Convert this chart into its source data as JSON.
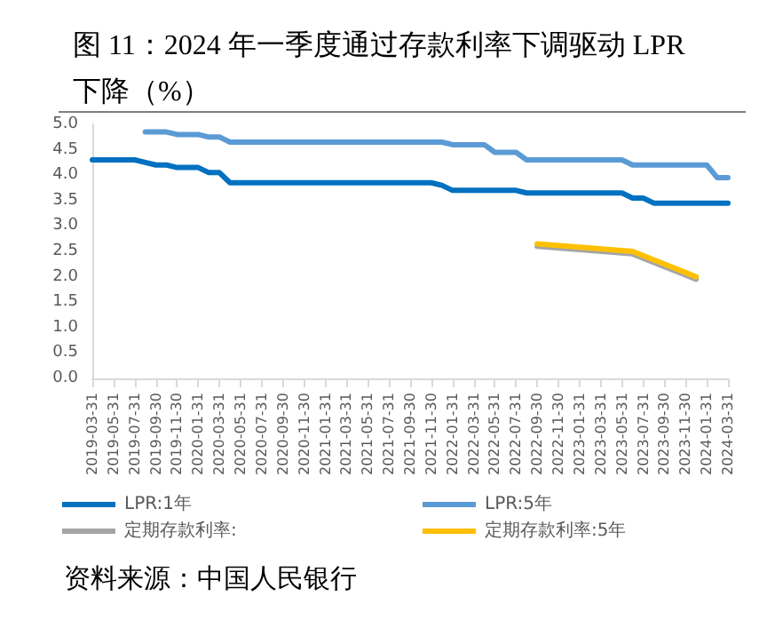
{
  "chart_data": {
    "type": "line",
    "title": "图 11：2024 年一季度通过存款利率下调驱动 LPR 下降（%）",
    "categories": [
      "2019-03-31",
      null,
      "2019-05-31",
      null,
      "2019-07-31",
      null,
      "2019-09-30",
      null,
      "2019-11-30",
      null,
      "2020-01-31",
      null,
      "2020-03-31",
      null,
      "2020-05-31",
      null,
      "2020-07-31",
      null,
      "2020-09-30",
      null,
      "2020-11-30",
      null,
      "2021-01-31",
      null,
      "2021-03-31",
      null,
      "2021-05-31",
      null,
      "2021-07-31",
      null,
      "2021-09-30",
      null,
      "2021-11-30",
      null,
      "2022-01-31",
      null,
      "2022-03-31",
      null,
      "2022-05-31",
      null,
      "2022-07-31",
      null,
      "2022-09-30",
      null,
      "2022-11-30",
      null,
      "2023-01-31",
      null,
      "2023-03-31",
      null,
      "2023-05-31",
      null,
      "2023-07-31",
      null,
      "2023-09-30",
      null,
      "2023-11-30",
      null,
      "2024-01-31",
      null,
      "2024-03-31"
    ],
    "series": [
      {
        "name": "LPR:1年",
        "color": "#0070c0",
        "values": [
          4.3,
          4.3,
          4.3,
          4.3,
          4.3,
          4.25,
          4.2,
          4.2,
          4.15,
          4.15,
          4.15,
          4.05,
          4.05,
          3.85,
          3.85,
          3.85,
          3.85,
          3.85,
          3.85,
          3.85,
          3.85,
          3.85,
          3.85,
          3.85,
          3.85,
          3.85,
          3.85,
          3.85,
          3.85,
          3.85,
          3.85,
          3.85,
          3.85,
          3.8,
          3.7,
          3.7,
          3.7,
          3.7,
          3.7,
          3.7,
          3.7,
          3.65,
          3.65,
          3.65,
          3.65,
          3.65,
          3.65,
          3.65,
          3.65,
          3.65,
          3.65,
          3.55,
          3.55,
          3.45,
          3.45,
          3.45,
          3.45,
          3.45,
          3.45,
          3.45,
          3.45
        ]
      },
      {
        "name": "LPR:5年",
        "color": "#5b9bd5",
        "values": [
          null,
          null,
          null,
          null,
          null,
          4.85,
          4.85,
          4.85,
          4.8,
          4.8,
          4.8,
          4.75,
          4.75,
          4.65,
          4.65,
          4.65,
          4.65,
          4.65,
          4.65,
          4.65,
          4.65,
          4.65,
          4.65,
          4.65,
          4.65,
          4.65,
          4.65,
          4.65,
          4.65,
          4.65,
          4.65,
          4.65,
          4.65,
          4.65,
          4.6,
          4.6,
          4.6,
          4.6,
          4.45,
          4.45,
          4.45,
          4.3,
          4.3,
          4.3,
          4.3,
          4.3,
          4.3,
          4.3,
          4.3,
          4.3,
          4.3,
          4.2,
          4.2,
          4.2,
          4.2,
          4.2,
          4.2,
          4.2,
          4.2,
          3.95,
          3.95
        ]
      },
      {
        "name": "定期存款利率:",
        "color": "#a5a5a5",
        "values": [
          null,
          null,
          null,
          null,
          null,
          null,
          null,
          null,
          null,
          null,
          null,
          null,
          null,
          null,
          null,
          null,
          null,
          null,
          null,
          null,
          null,
          null,
          null,
          null,
          null,
          null,
          null,
          null,
          null,
          null,
          null,
          null,
          null,
          null,
          null,
          null,
          null,
          null,
          null,
          null,
          null,
          null,
          2.6,
          null,
          null,
          null,
          null,
          null,
          null,
          null,
          null,
          2.45,
          null,
          null,
          2.2,
          null,
          null,
          1.95,
          null,
          null,
          null
        ]
      },
      {
        "name": "定期存款利率:5年",
        "color": "#ffc000",
        "values": [
          null,
          null,
          null,
          null,
          null,
          null,
          null,
          null,
          null,
          null,
          null,
          null,
          null,
          null,
          null,
          null,
          null,
          null,
          null,
          null,
          null,
          null,
          null,
          null,
          null,
          null,
          null,
          null,
          null,
          null,
          null,
          null,
          null,
          null,
          null,
          null,
          null,
          null,
          null,
          null,
          null,
          null,
          2.65,
          null,
          null,
          null,
          null,
          null,
          null,
          null,
          null,
          2.5,
          null,
          null,
          2.25,
          null,
          null,
          2.0,
          null,
          null,
          null
        ]
      }
    ],
    "ylim": [
      0,
      5
    ],
    "yticks": [
      {
        "value": 0,
        "label": "0.0"
      },
      {
        "value": 0.5,
        "label": "0.5"
      },
      {
        "value": 1,
        "label": "1.0"
      },
      {
        "value": 1.5,
        "label": "1.5"
      },
      {
        "value": 2,
        "label": "2.0"
      },
      {
        "value": 2.5,
        "label": "2.5"
      },
      {
        "value": 3,
        "label": "3.0"
      },
      {
        "value": 3.5,
        "label": "3.5"
      },
      {
        "value": 4,
        "label": "4.0"
      },
      {
        "value": 4.5,
        "label": "4.5"
      },
      {
        "value": 5,
        "label": "5.0"
      }
    ],
    "grid": false,
    "legend": "bottom",
    "marker": "none",
    "line_style": "solid",
    "annotations": [
      "资料来源：中国人民银行"
    ]
  }
}
